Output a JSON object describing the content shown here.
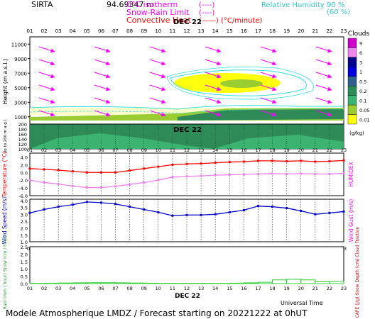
{
  "header": {
    "station": "SIRTA",
    "station_info": "94.69347 m",
    "legend_lines": [
      {
        "label": "0°C isotherm",
        "key": "(----)",
        "color": "#ff00ff"
      },
      {
        "label": "Snow-Rain Limit",
        "key": "(----)",
        "color": "#ff00ff"
      },
      {
        "label": "Convective Heat",
        "key": "(——) (°C/minute)",
        "color": "#ff0000"
      }
    ],
    "humidity_legend": [
      {
        "label": "Relative Humidity",
        "value": "90 %"
      },
      {
        "label": "",
        "value": "(60 %)"
      }
    ]
  },
  "hours": [
    "01",
    "02",
    "03",
    "04",
    "05",
    "06",
    "07",
    "08",
    "09",
    "10",
    "11",
    "12",
    "13",
    "14",
    "15",
    "16",
    "17",
    "18",
    "19",
    "20",
    "21",
    "22",
    "23"
  ],
  "date_label": "DEC 22",
  "clouds_colorbar": {
    "title": "Clouds",
    "unit": "(g/kg)",
    "ticks": [
      "9",
      "6",
      "3",
      "1",
      "0.5",
      "0.2",
      "0.1",
      "0.05",
      "0.01"
    ],
    "colors": [
      "#cc00cc",
      "#ee88ee",
      "#00008b",
      "#0000dd",
      "#2f5f8f",
      "#2e8b57",
      "#3cb371",
      "#9acd32",
      "#ffff00"
    ]
  },
  "footer": {
    "time_axis": "Universal Time",
    "title": "Modele Atmospherique LMDZ / Forecast starting on 20221222 at 0hUT"
  },
  "chart_data": [
    {
      "type": "heatmap",
      "panel": "clouds-wind",
      "ylabel": "Height (m a.s.l.)",
      "yticks_upper": [
        1000,
        3000,
        5000,
        7000,
        9000,
        11000
      ],
      "ylabel_lower": "Up to 200 m a.g.l.",
      "yticks_lower": [
        100,
        120,
        140,
        160,
        180,
        200
      ],
      "wind_direction": "from west-northwest"
    },
    {
      "type": "line",
      "panel": "temperature",
      "x": [
        1,
        2,
        3,
        4,
        5,
        6,
        7,
        8,
        9,
        10,
        11,
        12,
        13,
        14,
        15,
        16,
        17,
        18,
        19,
        20,
        21,
        22,
        23
      ],
      "ylabel": "Temperature (°C)",
      "ylabel_right": "HUMIDEX",
      "yticks": [
        "-6.0",
        "-4.0",
        "-2.0",
        "0.0",
        "2.0",
        "4.0"
      ],
      "ylim": [
        -6,
        5
      ],
      "series": [
        {
          "color": "#ff0000",
          "values": [
            1.0,
            0.8,
            0.6,
            0.3,
            0.0,
            0.0,
            0.0,
            0.5,
            1.0,
            1.5,
            2.0,
            2.2,
            2.3,
            2.5,
            2.7,
            2.8,
            3.0,
            3.0,
            2.9,
            3.0,
            2.8,
            2.9,
            3.1
          ]
        },
        {
          "color": "#ee82ee",
          "values": [
            -2.0,
            -2.6,
            -3.0,
            -3.5,
            -3.9,
            -3.9,
            -3.6,
            -3.1,
            -2.6,
            -2.0,
            -1.2,
            -1.0,
            -0.9,
            -0.7,
            -0.6,
            -0.5,
            -0.4,
            -0.3,
            -0.4,
            -0.3,
            -0.4,
            -0.4,
            -0.2
          ]
        }
      ]
    },
    {
      "type": "line",
      "panel": "wind",
      "x": [
        1,
        2,
        3,
        4,
        5,
        6,
        7,
        8,
        9,
        10,
        11,
        12,
        13,
        14,
        15,
        16,
        17,
        18,
        19,
        20,
        21,
        22,
        23
      ],
      "ylabel": "Wind Speed (m/s)",
      "ylabel_right": "Wind Gust (m/s)",
      "yticks": [
        "1.0",
        "1.5",
        "2.0",
        "2.5",
        "3.0",
        "3.5",
        "4.0"
      ],
      "ylim": [
        1.0,
        4.1
      ],
      "series": [
        {
          "color": "#0000cc",
          "values": [
            3.1,
            3.35,
            3.55,
            3.7,
            3.9,
            3.85,
            3.75,
            3.55,
            3.35,
            3.15,
            2.9,
            2.95,
            2.95,
            3.0,
            3.15,
            3.3,
            3.6,
            3.55,
            3.45,
            3.25,
            3.0,
            3.1,
            3.2
          ]
        }
      ]
    },
    {
      "type": "bar",
      "panel": "precipitation",
      "x": [
        1,
        2,
        3,
        4,
        5,
        6,
        7,
        8,
        9,
        10,
        11,
        12,
        13,
        14,
        15,
        16,
        17,
        18,
        19,
        20,
        21,
        22,
        23
      ],
      "ylabel": "Rain (mm / hour) Snow (cm / hour)",
      "ylabel_right": "CAPE (J/g) Snow Depth (cm) Cloud Fraction",
      "yticks": [
        "0.0",
        "0.5",
        "1.0",
        "1.5",
        "2.0",
        "2.5"
      ],
      "ylim": [
        0,
        2.5
      ],
      "series": [
        {
          "color": "#33cc33",
          "values": [
            0.02,
            0.03,
            0.04,
            0.05,
            0.06,
            0.06,
            0.05,
            0.04,
            0.03,
            0.02,
            0.02,
            0.02,
            0.02,
            0.02,
            0.03,
            0.05,
            0.09,
            0.25,
            0.29,
            0.25,
            0.12,
            0.14,
            0.1
          ]
        }
      ]
    }
  ]
}
